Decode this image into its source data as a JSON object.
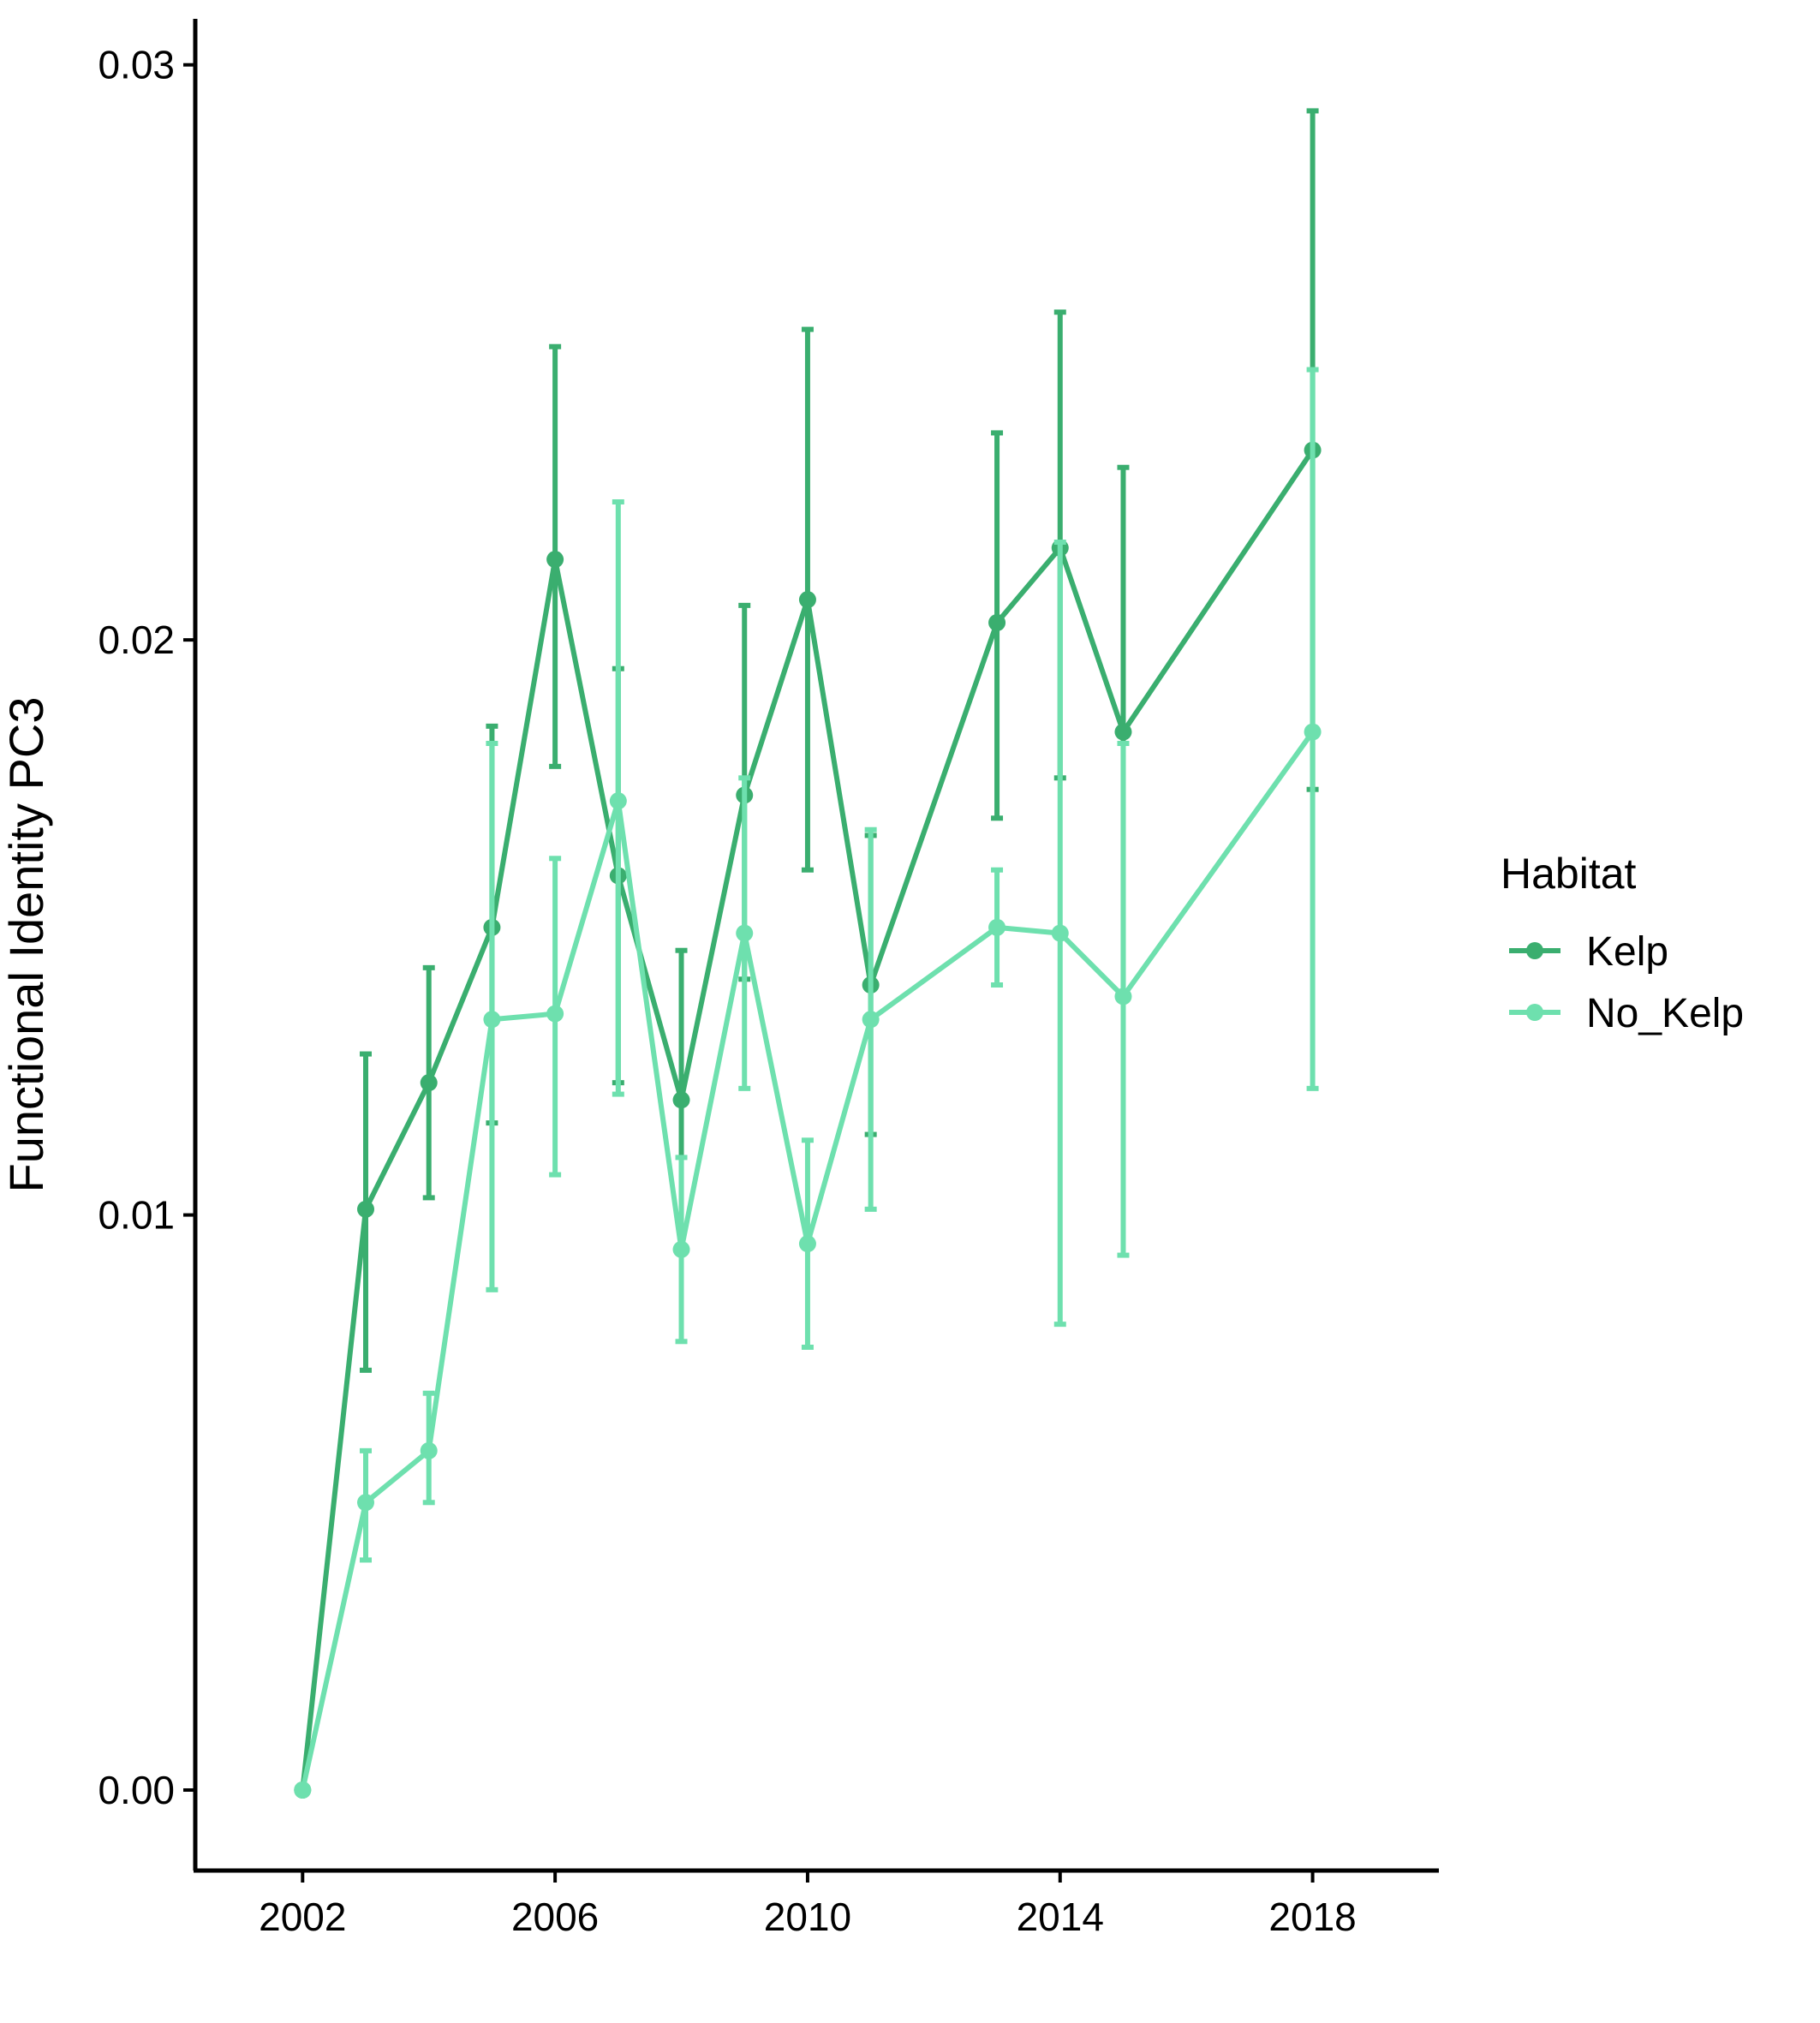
{
  "chart_data": {
    "type": "line",
    "title": "",
    "xlabel": "",
    "ylabel": "Functional Identity PC3",
    "xlim": [
      2000.3,
      2020
    ],
    "ylim": [
      -0.0014,
      0.0308
    ],
    "x_ticks": [
      2002,
      2006,
      2010,
      2014,
      2018
    ],
    "x_tick_labels": [
      "2002",
      "2006",
      "2010",
      "2014",
      "2018"
    ],
    "y_ticks": [
      0.0,
      0.01,
      0.02,
      0.03
    ],
    "y_tick_labels": [
      "0.00",
      "0.01",
      "0.02",
      "0.03"
    ],
    "grid": false,
    "legend": {
      "title": "Habitat",
      "position": "right"
    },
    "series": [
      {
        "name": "Kelp",
        "color": "#3aae6f",
        "points": [
          {
            "x": 2002,
            "y": 0.0,
            "lo": 0.0,
            "hi": 0.0
          },
          {
            "x": 2003,
            "y": 0.0101,
            "lo": 0.0073,
            "hi": 0.0128
          },
          {
            "x": 2004,
            "y": 0.0123,
            "lo": 0.0103,
            "hi": 0.0143
          },
          {
            "x": 2005,
            "y": 0.015,
            "lo": 0.0116,
            "hi": 0.0185
          },
          {
            "x": 2006,
            "y": 0.0214,
            "lo": 0.0178,
            "hi": 0.0251
          },
          {
            "x": 2007,
            "y": 0.0159,
            "lo": 0.0123,
            "hi": 0.0195
          },
          {
            "x": 2008,
            "y": 0.012,
            "lo": 0.0094,
            "hi": 0.0146
          },
          {
            "x": 2009,
            "y": 0.0173,
            "lo": 0.0141,
            "hi": 0.0206
          },
          {
            "x": 2010,
            "y": 0.0207,
            "lo": 0.016,
            "hi": 0.0254
          },
          {
            "x": 2011,
            "y": 0.014,
            "lo": 0.0114,
            "hi": 0.0166
          },
          {
            "x": 2013,
            "y": 0.0203,
            "lo": 0.0169,
            "hi": 0.0236
          },
          {
            "x": 2014,
            "y": 0.0216,
            "lo": 0.0176,
            "hi": 0.0257
          },
          {
            "x": 2015,
            "y": 0.0184,
            "lo": 0.0138,
            "hi": 0.023
          },
          {
            "x": 2018,
            "y": 0.0233,
            "lo": 0.0174,
            "hi": 0.0292
          }
        ]
      },
      {
        "name": "No_Kelp",
        "color": "#6ee0ae",
        "points": [
          {
            "x": 2002,
            "y": 0.0,
            "lo": 0.0,
            "hi": 0.0
          },
          {
            "x": 2003,
            "y": 0.005,
            "lo": 0.004,
            "hi": 0.0059
          },
          {
            "x": 2004,
            "y": 0.0059,
            "lo": 0.005,
            "hi": 0.0069
          },
          {
            "x": 2005,
            "y": 0.0134,
            "lo": 0.0087,
            "hi": 0.0182
          },
          {
            "x": 2006,
            "y": 0.0135,
            "lo": 0.0107,
            "hi": 0.0162
          },
          {
            "x": 2007,
            "y": 0.0172,
            "lo": 0.0121,
            "hi": 0.0224
          },
          {
            "x": 2008,
            "y": 0.0094,
            "lo": 0.0078,
            "hi": 0.011
          },
          {
            "x": 2009,
            "y": 0.0149,
            "lo": 0.0122,
            "hi": 0.0176
          },
          {
            "x": 2010,
            "y": 0.0095,
            "lo": 0.0077,
            "hi": 0.0113
          },
          {
            "x": 2011,
            "y": 0.0134,
            "lo": 0.0101,
            "hi": 0.0167
          },
          {
            "x": 2013,
            "y": 0.015,
            "lo": 0.014,
            "hi": 0.016
          },
          {
            "x": 2014,
            "y": 0.0149,
            "lo": 0.0081,
            "hi": 0.0217
          },
          {
            "x": 2015,
            "y": 0.0138,
            "lo": 0.0093,
            "hi": 0.0182
          },
          {
            "x": 2018,
            "y": 0.0184,
            "lo": 0.0122,
            "hi": 0.0247
          }
        ]
      }
    ]
  }
}
